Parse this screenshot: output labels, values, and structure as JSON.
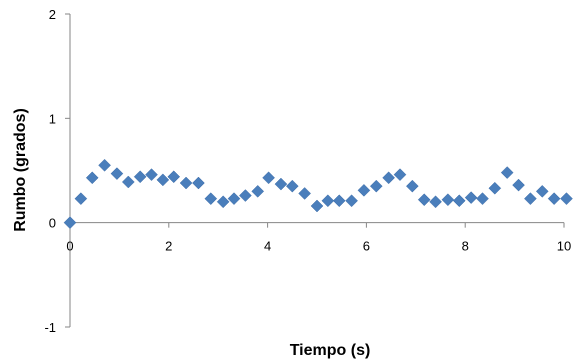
{
  "chart_data": {
    "type": "scatter",
    "title": "",
    "xlabel": "Tiempo (s)",
    "ylabel": "Rumbo (grados)",
    "xlim": [
      0,
      10
    ],
    "ylim": [
      -1,
      2
    ],
    "x_ticks": [
      0,
      2,
      4,
      6,
      8,
      10
    ],
    "y_ticks": [
      -1,
      0,
      1,
      2
    ],
    "x_tick_labels": [
      "0",
      "2",
      "4",
      "6",
      "8",
      "10"
    ],
    "y_tick_labels": [
      "-1",
      "0",
      "1",
      "2"
    ],
    "grid": false,
    "legend": "none",
    "marker": "diamond",
    "marker_color": "#4a7ebb",
    "series": [
      {
        "x": [
          0,
          0.22,
          0.45,
          0.7,
          0.95,
          1.18,
          1.42,
          1.65,
          1.88,
          2.1,
          2.35,
          2.6,
          2.85,
          3.1,
          3.32,
          3.55,
          3.8,
          4.02,
          4.27,
          4.5,
          4.75,
          5.0,
          5.22,
          5.45,
          5.7,
          5.95,
          6.2,
          6.45,
          6.68,
          6.93,
          7.17,
          7.4,
          7.65,
          7.88,
          8.12,
          8.35,
          8.6,
          8.85,
          9.08,
          9.32,
          9.56,
          9.8,
          10.05
        ],
        "y": [
          0,
          0.23,
          0.43,
          0.55,
          0.47,
          0.39,
          0.44,
          0.46,
          0.41,
          0.44,
          0.38,
          0.38,
          0.23,
          0.2,
          0.23,
          0.26,
          0.3,
          0.43,
          0.37,
          0.35,
          0.28,
          0.16,
          0.21,
          0.21,
          0.21,
          0.31,
          0.35,
          0.43,
          0.46,
          0.35,
          0.22,
          0.2,
          0.22,
          0.21,
          0.24,
          0.23,
          0.33,
          0.48,
          0.36,
          0.23,
          0.3,
          0.23,
          0.23
        ]
      }
    ]
  }
}
